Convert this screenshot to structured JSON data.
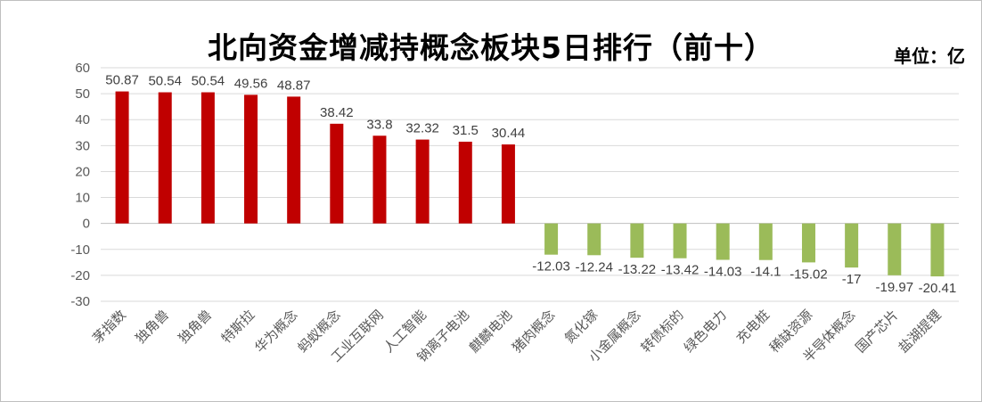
{
  "header": {
    "title": "北向资金增减持概念板块5日排行（前十）",
    "unit": "单位：亿"
  },
  "colors": {
    "positive": "#c00000",
    "negative": "#9bbb59",
    "grid": "#d9d9d9",
    "axis": "#bfbfbf"
  },
  "chart_data": {
    "type": "bar",
    "title": "北向资金增减持概念板块5日排行（前十）",
    "unit": "单位：亿",
    "categories": [
      "茅指数",
      "独角兽",
      "独角兽",
      "特斯拉",
      "华为概念",
      "蚂蚁概念",
      "工业互联网",
      "人工智能",
      "钠离子电池",
      "麒麟电池",
      "猪肉概念",
      "氮化镓",
      "小金属概念",
      "转债标的",
      "绿色电力",
      "充电桩",
      "稀缺资源",
      "半导体概念",
      "国产芯片",
      "盐湖提锂"
    ],
    "values": [
      50.87,
      50.54,
      50.54,
      49.56,
      48.87,
      38.42,
      33.8,
      32.32,
      31.5,
      30.44,
      -12.03,
      -12.24,
      -13.22,
      -13.42,
      -14.03,
      -14.1,
      -15.02,
      -17,
      -19.97,
      -20.41
    ],
    "ylim": [
      -30,
      60
    ],
    "yticks": [
      60,
      50,
      40,
      30,
      20,
      10,
      0,
      -10,
      -20,
      -30
    ],
    "ytick_labels": [
      "60",
      "50",
      "40",
      "30",
      "20",
      "10",
      "0",
      "-10",
      "-20",
      "-30"
    ],
    "grid": true,
    "xlabel": "",
    "ylabel": ""
  }
}
